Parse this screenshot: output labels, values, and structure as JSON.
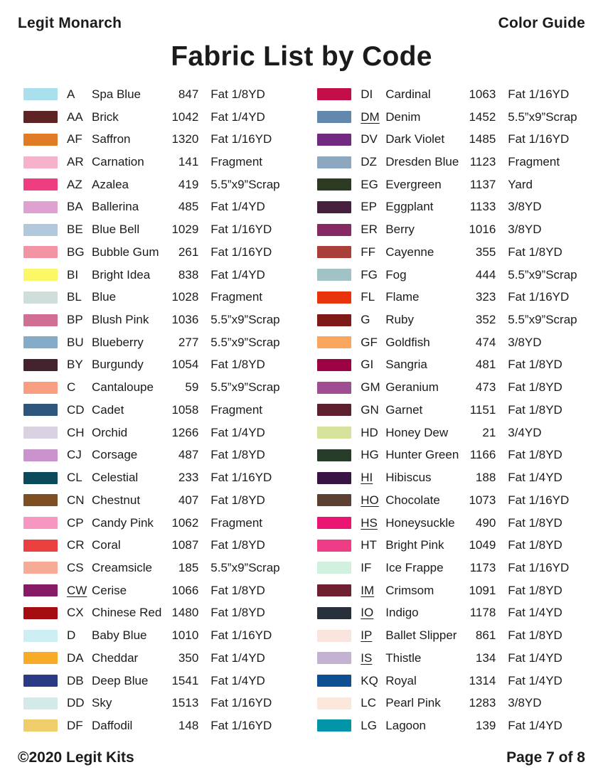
{
  "header": {
    "brand": "Legit Monarch",
    "doc_type": "Color Guide",
    "title": "Fabric List by Code"
  },
  "footer": {
    "copyright": "©2020 Legit Kits",
    "page_indicator": "Page 7 of 8"
  },
  "columns": [
    {
      "rows": [
        {
          "code": "A",
          "underline": false,
          "name": "Spa Blue",
          "number": "847",
          "size": "Fat 1/8YD",
          "color": "#aadfee"
        },
        {
          "code": "AA",
          "underline": false,
          "name": "Brick",
          "number": "1042",
          "size": "Fat 1/4YD",
          "color": "#5e2423"
        },
        {
          "code": "AF",
          "underline": false,
          "name": "Saffron",
          "number": "1320",
          "size": "Fat 1/16YD",
          "color": "#e07c25"
        },
        {
          "code": "AR",
          "underline": false,
          "name": "Carnation",
          "number": "141",
          "size": "Fragment",
          "color": "#f6b1cd"
        },
        {
          "code": "AZ",
          "underline": false,
          "name": "Azalea",
          "number": "419",
          "size": "5.5”x9”Scrap",
          "color": "#ee3e81"
        },
        {
          "code": "BA",
          "underline": false,
          "name": "Ballerina",
          "number": "485",
          "size": "Fat 1/4YD",
          "color": "#dfa2d0"
        },
        {
          "code": "BE",
          "underline": false,
          "name": "Blue Bell",
          "number": "1029",
          "size": "Fat 1/16YD",
          "color": "#b2c8dd"
        },
        {
          "code": "BG",
          "underline": false,
          "name": "Bubble Gum",
          "number": "261",
          "size": "Fat 1/16YD",
          "color": "#f294a3"
        },
        {
          "code": "BI",
          "underline": false,
          "name": "Bright Idea",
          "number": "838",
          "size": "Fat 1/4YD",
          "color": "#fbf766"
        },
        {
          "code": "BL",
          "underline": false,
          "name": "Blue",
          "number": "1028",
          "size": "Fragment",
          "color": "#cfdeda"
        },
        {
          "code": "BP",
          "underline": false,
          "name": "Blush Pink",
          "number": "1036",
          "size": "5.5”x9”Scrap",
          "color": "#d06e93"
        },
        {
          "code": "BU",
          "underline": false,
          "name": "Blueberry",
          "number": "277",
          "size": "5.5”x9”Scrap",
          "color": "#84abc7"
        },
        {
          "code": "BY",
          "underline": false,
          "name": "Burgundy",
          "number": "1054",
          "size": "Fat 1/8YD",
          "color": "#45232e"
        },
        {
          "code": "C",
          "underline": false,
          "name": "Cantaloupe",
          "number": "59",
          "size": "5.5”x9”Scrap",
          "color": "#fa9e82"
        },
        {
          "code": "CD",
          "underline": false,
          "name": "Cadet",
          "number": "1058",
          "size": "Fragment",
          "color": "#2e567c"
        },
        {
          "code": "CH",
          "underline": false,
          "name": "Orchid",
          "number": "1266",
          "size": "Fat 1/4YD",
          "color": "#d8d2e2"
        },
        {
          "code": "CJ",
          "underline": false,
          "name": "Corsage",
          "number": "487",
          "size": "Fat 1/8YD",
          "color": "#ca93ce"
        },
        {
          "code": "CL",
          "underline": false,
          "name": "Celestial",
          "number": "233",
          "size": "Fat 1/16YD",
          "color": "#0b4a5a"
        },
        {
          "code": "CN",
          "underline": false,
          "name": "Chestnut",
          "number": "407",
          "size": "Fat 1/8YD",
          "color": "#7e4f22"
        },
        {
          "code": "CP",
          "underline": false,
          "name": "Candy Pink",
          "number": "1062",
          "size": "Fragment",
          "color": "#f795c3"
        },
        {
          "code": "CR",
          "underline": false,
          "name": "Coral",
          "number": "1087",
          "size": "Fat 1/8YD",
          "color": "#ea3f3e"
        },
        {
          "code": "CS",
          "underline": false,
          "name": "Creamsicle",
          "number": "185",
          "size": "5.5”x9”Scrap",
          "color": "#f6ab97"
        },
        {
          "code": "CW",
          "underline": true,
          "name": "Cerise",
          "number": "1066",
          "size": "Fat 1/8YD",
          "color": "#871b66"
        },
        {
          "code": "CX",
          "underline": false,
          "name": "Chinese Red",
          "number": "1480",
          "size": "Fat 1/8YD",
          "color": "#a50d12"
        },
        {
          "code": "D",
          "underline": false,
          "name": "Baby Blue",
          "number": "1010",
          "size": "Fat 1/16YD",
          "color": "#cdeef2"
        },
        {
          "code": "DA",
          "underline": false,
          "name": "Cheddar",
          "number": "350",
          "size": "Fat 1/4YD",
          "color": "#f8ab26"
        },
        {
          "code": "DB",
          "underline": false,
          "name": "Deep Blue",
          "number": "1541",
          "size": "Fat 1/4YD",
          "color": "#2b3a85"
        },
        {
          "code": "DD",
          "underline": false,
          "name": "Sky",
          "number": "1513",
          "size": "Fat 1/16YD",
          "color": "#d3e9ea"
        },
        {
          "code": "DF",
          "underline": false,
          "name": "Daffodil",
          "number": "148",
          "size": "Fat 1/16YD",
          "color": "#f0cd6b"
        }
      ]
    },
    {
      "rows": [
        {
          "code": "DI",
          "underline": false,
          "name": "Cardinal",
          "number": "1063",
          "size": "Fat 1/16YD",
          "color": "#c40e48"
        },
        {
          "code": "DM",
          "underline": true,
          "name": "Denim",
          "number": "1452",
          "size": "5.5”x9”Scrap",
          "color": "#6288ad"
        },
        {
          "code": "DV",
          "underline": false,
          "name": "Dark Violet",
          "number": "1485",
          "size": "Fat 1/16YD",
          "color": "#722a80"
        },
        {
          "code": "DZ",
          "underline": false,
          "name": "Dresden Blue",
          "number": "1123",
          "size": "Fragment",
          "color": "#8ea7c0"
        },
        {
          "code": "EG",
          "underline": false,
          "name": "Evergreen",
          "number": "1137",
          "size": "Yard",
          "color": "#2c3a22"
        },
        {
          "code": "EP",
          "underline": false,
          "name": "Eggplant",
          "number": "1133",
          "size": "3/8YD",
          "color": "#46203e"
        },
        {
          "code": "ER",
          "underline": false,
          "name": "Berry",
          "number": "1016",
          "size": "3/8YD",
          "color": "#852a62"
        },
        {
          "code": "FF",
          "underline": false,
          "name": "Cayenne",
          "number": "355",
          "size": "Fat 1/8YD",
          "color": "#a83f38"
        },
        {
          "code": "FG",
          "underline": false,
          "name": "Fog",
          "number": "444",
          "size": "5.5”x9”Scrap",
          "color": "#a2c3c6"
        },
        {
          "code": "FL",
          "underline": false,
          "name": "Flame",
          "number": "323",
          "size": "Fat 1/16YD",
          "color": "#e8330d"
        },
        {
          "code": "G",
          "underline": false,
          "name": "Ruby",
          "number": "352",
          "size": "5.5”x9”Scrap",
          "color": "#7e1a18"
        },
        {
          "code": "GF",
          "underline": false,
          "name": "Goldfish",
          "number": "474",
          "size": "3/8YD",
          "color": "#f9a75e"
        },
        {
          "code": "GI",
          "underline": false,
          "name": "Sangria",
          "number": "481",
          "size": "Fat 1/8YD",
          "color": "#9c0344"
        },
        {
          "code": "GM",
          "underline": false,
          "name": "Geranium",
          "number": "473",
          "size": "Fat 1/8YD",
          "color": "#a04e92"
        },
        {
          "code": "GN",
          "underline": false,
          "name": "Garnet",
          "number": "1151",
          "size": "Fat 1/8YD",
          "color": "#5c1f2e"
        },
        {
          "code": "HD",
          "underline": false,
          "name": "Honey Dew",
          "number": "21",
          "size": "3/4YD",
          "color": "#d6e39c"
        },
        {
          "code": "HG",
          "underline": false,
          "name": "Hunter Green",
          "number": "1166",
          "size": "Fat 1/8YD",
          "color": "#273c28"
        },
        {
          "code": "HI",
          "underline": true,
          "name": "Hibiscus",
          "number": "188",
          "size": "Fat 1/4YD",
          "color": "#371443"
        },
        {
          "code": "HO",
          "underline": true,
          "name": "Chocolate",
          "number": "1073",
          "size": "Fat 1/16YD",
          "color": "#5c4132"
        },
        {
          "code": "HS",
          "underline": true,
          "name": "Honeysuckle",
          "number": "490",
          "size": "Fat 1/8YD",
          "color": "#ea1472"
        },
        {
          "code": "HT",
          "underline": false,
          "name": "Bright Pink",
          "number": "1049",
          "size": "Fat 1/8YD",
          "color": "#ee3d87"
        },
        {
          "code": "IF",
          "underline": false,
          "name": "Ice Frappe",
          "number": "1173",
          "size": "Fat 1/16YD",
          "color": "#d2f0de"
        },
        {
          "code": "IM",
          "underline": true,
          "name": "Crimsom",
          "number": "1091",
          "size": "Fat 1/8YD",
          "color": "#6e1f30"
        },
        {
          "code": "IO",
          "underline": true,
          "name": "Indigo",
          "number": "1178",
          "size": "Fat 1/4YD",
          "color": "#28303c"
        },
        {
          "code": "IP",
          "underline": true,
          "name": "Ballet Slipper",
          "number": "861",
          "size": "Fat 1/8YD",
          "color": "#fae5de"
        },
        {
          "code": "IS",
          "underline": true,
          "name": "Thistle",
          "number": "134",
          "size": "Fat 1/4YD",
          "color": "#c3b2d2"
        },
        {
          "code": "KQ",
          "underline": false,
          "name": "Royal",
          "number": "1314",
          "size": "Fat 1/4YD",
          "color": "#0d4f91"
        },
        {
          "code": "LC",
          "underline": false,
          "name": "Pearl Pink",
          "number": "1283",
          "size": "3/8YD",
          "color": "#fbe8da"
        },
        {
          "code": "LG",
          "underline": false,
          "name": "Lagoon",
          "number": "139",
          "size": "Fat 1/4YD",
          "color": "#0295a9"
        }
      ]
    }
  ]
}
